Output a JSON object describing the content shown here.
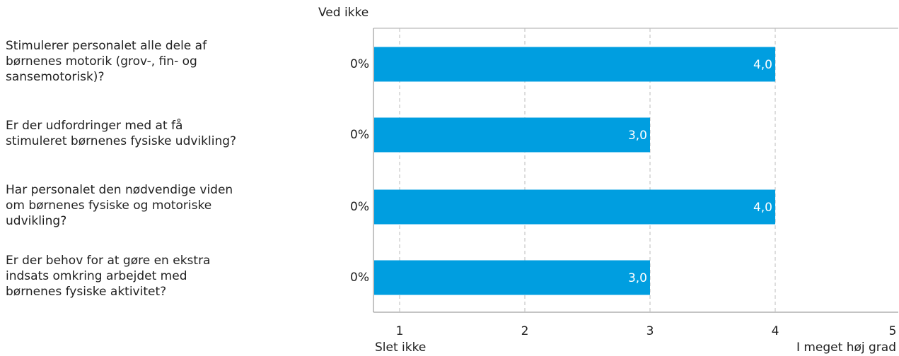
{
  "header": {
    "dont_know": "Ved ikke"
  },
  "chart_data": {
    "type": "bar",
    "orientation": "horizontal",
    "categories": [
      "Stimulerer personalet alle dele af børnenes motorik (grov-, fin- og sansemotorisk)?",
      "Er der udfordringer med at få stimuleret børnenes fysiske udvikling?",
      "Har personalet den nødvendige viden om børnenes fysiske og motoriske udvikling?",
      "Er der behov for at gøre en ekstra indsats omkring arbejdet med børnenes fysiske aktivitet?"
    ],
    "category_lines": [
      [
        "Stimulerer personalet alle dele af",
        "børnenes motorik (grov-, fin- og",
        "sansemotorisk)?"
      ],
      [
        "Er der udfordringer med at få",
        "stimuleret børnenes fysiske udvikling?"
      ],
      [
        "Har personalet den nødvendige viden",
        "om børnenes fysiske og motoriske",
        "udvikling?"
      ],
      [
        "Er der behov for at gøre en ekstra",
        "indsats omkring arbejdet med",
        "børnenes fysiske aktivitet?"
      ]
    ],
    "values": [
      4.0,
      3.0,
      4.0,
      3.0
    ],
    "value_labels": [
      "4,0",
      "3,0",
      "4,0",
      "3,0"
    ],
    "dont_know": [
      "0%",
      "0%",
      "0%",
      "0%"
    ],
    "xlim": [
      1,
      5
    ],
    "xticks": [
      "1",
      "2",
      "3",
      "4",
      "5"
    ],
    "x_min_label": "Slet ikke",
    "x_max_label": "I meget høj grad",
    "grid": true,
    "bar_color": "#009ee0"
  }
}
